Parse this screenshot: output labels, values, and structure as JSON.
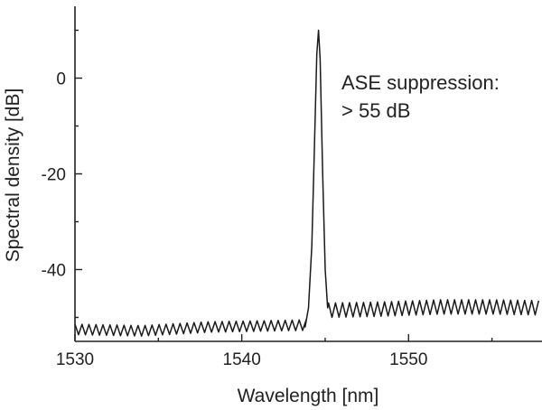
{
  "chart_data": {
    "type": "line",
    "xlabel": "Wavelength [nm]",
    "ylabel": "Spectral density [dB]",
    "xlim": [
      1530,
      1558
    ],
    "ylim": [
      -55,
      15
    ],
    "xticks": [
      1530,
      1540,
      1550
    ],
    "yticks": [
      -40,
      -20,
      0
    ],
    "grid": false,
    "annotation": [
      "ASE suppression:",
      "> 55 dB"
    ],
    "line_color": "#1a1a1a",
    "series": [
      {
        "spectrum": {
          "peak_wavelength": 1544.6,
          "peak_level": 10,
          "floor_segments": [
            {
              "x": [
                1530,
                1534,
                1538,
                1541,
                1544.0
              ],
              "mean": [
                -52.5,
                -52.8,
                -52.0,
                -51.8,
                -51.6
              ]
            },
            {
              "x": [
                1545.0,
                1548,
                1552,
                1555,
                1558
              ],
              "mean": [
                -48.5,
                -48.3,
                -47.8,
                -47.8,
                -48.0
              ]
            }
          ],
          "ripple_period_nm": 0.42,
          "ripple_amplitude_db": [
            1.1,
            1.5
          ],
          "points": [
            [
              1543.8,
              -52
            ],
            [
              1544.0,
              -48
            ],
            [
              1544.2,
              -35
            ],
            [
              1544.35,
              -15
            ],
            [
              1544.5,
              5
            ],
            [
              1544.6,
              10
            ],
            [
              1544.7,
              4
            ],
            [
              1544.85,
              -20
            ],
            [
              1545.0,
              -40
            ],
            [
              1545.15,
              -48
            ]
          ]
        }
      }
    ]
  }
}
